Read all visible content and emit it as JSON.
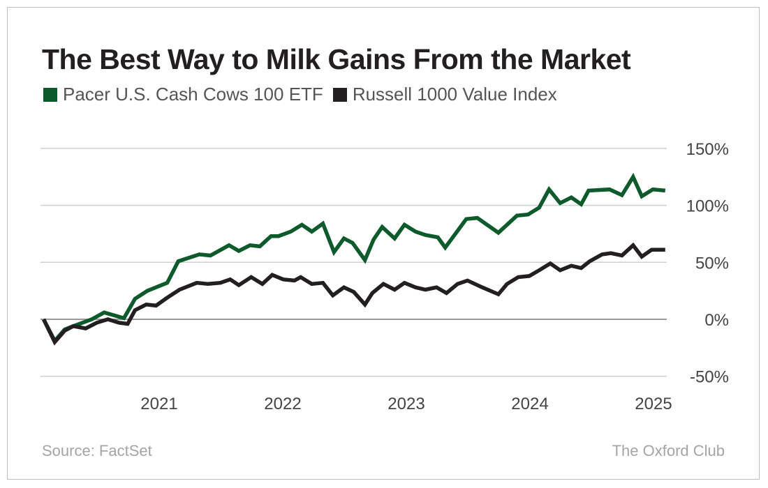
{
  "chart_data": {
    "type": "line",
    "title": "The Best Way to Milk Gains From the Market",
    "xlabel": "",
    "ylabel": "",
    "xlim": [
      2020.11,
      2025.14
    ],
    "ylim": [
      -50,
      150
    ],
    "x_ticks": [
      2021,
      2022,
      2023,
      2024,
      2025
    ],
    "x_tick_labels": [
      "2021",
      "2022",
      "2023",
      "2024",
      "2025"
    ],
    "y_ticks": [
      150,
      100,
      50,
      0,
      -50
    ],
    "y_tick_labels": [
      "150%",
      "100%",
      "50%",
      "0%",
      "-50%"
    ],
    "grid": "horizontal",
    "legend_position": "top-left",
    "series": [
      {
        "name": "Pacer U.S. Cash Cows 100 ETF",
        "color": "#0d5a2b",
        "x": [
          2020.11,
          2020.2,
          2020.28,
          2020.35,
          2020.5,
          2020.6,
          2020.76,
          2020.85,
          2020.95,
          2021.11,
          2021.2,
          2021.37,
          2021.46,
          2021.61,
          2021.69,
          2021.78,
          2021.86,
          2021.95,
          2022.01,
          2022.11,
          2022.2,
          2022.28,
          2022.37,
          2022.46,
          2022.54,
          2022.61,
          2022.71,
          2022.78,
          2022.85,
          2022.95,
          2023.03,
          2023.12,
          2023.2,
          2023.3,
          2023.36,
          2023.53,
          2023.62,
          2023.79,
          2023.94,
          2024.03,
          2024.12,
          2024.2,
          2024.29,
          2024.38,
          2024.46,
          2024.52,
          2024.69,
          2024.79,
          2024.88,
          2024.95,
          2025.04,
          2025.14
        ],
        "y": [
          0,
          -19,
          -9,
          -6,
          0,
          6,
          1,
          18,
          25,
          32,
          51,
          57,
          56,
          65,
          60,
          65,
          64,
          73,
          73,
          77,
          83,
          77,
          84,
          59,
          71,
          67,
          52,
          70,
          81,
          71,
          83,
          77,
          74,
          72,
          63,
          88,
          89,
          76,
          91,
          92,
          98,
          114,
          102,
          107,
          101,
          113,
          114,
          109,
          125,
          108,
          114,
          113
        ]
      },
      {
        "name": "Russell 1000 Value Index",
        "color": "#231f20",
        "x": [
          2020.11,
          2020.2,
          2020.28,
          2020.35,
          2020.45,
          2020.54,
          2020.63,
          2020.72,
          2020.79,
          2020.85,
          2020.94,
          2021.02,
          2021.11,
          2021.21,
          2021.35,
          2021.44,
          2021.54,
          2021.62,
          2021.69,
          2021.79,
          2021.88,
          2021.96,
          2022.05,
          2022.14,
          2022.19,
          2022.28,
          2022.37,
          2022.45,
          2022.54,
          2022.62,
          2022.71,
          2022.77,
          2022.86,
          2022.95,
          2023.03,
          2023.12,
          2023.2,
          2023.29,
          2023.37,
          2023.46,
          2023.54,
          2023.66,
          2023.79,
          2023.86,
          2023.95,
          2024.04,
          2024.12,
          2024.21,
          2024.29,
          2024.38,
          2024.46,
          2024.53,
          2024.63,
          2024.7,
          2024.79,
          2024.88,
          2024.95,
          2025.03,
          2025.14
        ],
        "y": [
          0,
          -20,
          -10,
          -6,
          -8,
          -3,
          0,
          -3,
          -4,
          8,
          13,
          12,
          19,
          26,
          32,
          31,
          32,
          35,
          30,
          37,
          31,
          39,
          35,
          34,
          37,
          31,
          32,
          21,
          28,
          24,
          13,
          23,
          31,
          26,
          32,
          28,
          26,
          28,
          23,
          31,
          34,
          28,
          22,
          31,
          37,
          38,
          43,
          49,
          43,
          47,
          45,
          51,
          57,
          58,
          56,
          65,
          55,
          61,
          61
        ]
      }
    ],
    "source": "Source: FactSet",
    "brand": "The Oxford Club"
  }
}
